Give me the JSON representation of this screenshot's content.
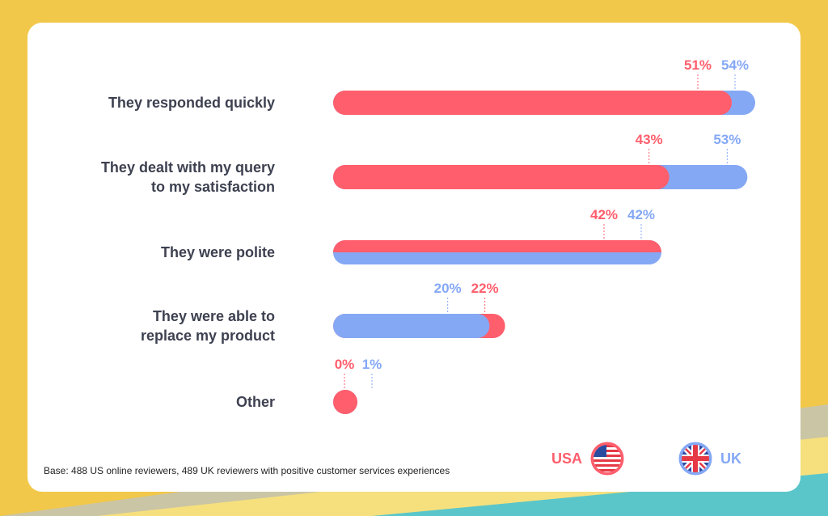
{
  "colors": {
    "usa": "#ff5e6c",
    "uk": "#85a8f5",
    "label": "#3d4150",
    "background": "#f2c84b",
    "card": "#ffffff"
  },
  "chart_data": {
    "type": "bar",
    "orientation": "horizontal",
    "categories": [
      [
        "They responded quickly"
      ],
      [
        "They dealt with my query",
        "to my satisfaction"
      ],
      [
        "They were polite"
      ],
      [
        "They were able to",
        "replace my product"
      ],
      [
        "Other"
      ]
    ],
    "series": [
      {
        "name": "USA",
        "color": "#ff5e6c",
        "values": [
          51,
          43,
          42,
          22,
          0
        ],
        "labels": [
          "51%",
          "43%",
          "42%",
          "22%",
          "0%"
        ]
      },
      {
        "name": "UK",
        "color": "#85a8f5",
        "values": [
          54,
          53,
          42,
          20,
          1
        ],
        "labels": [
          "54%",
          "53%",
          "42%",
          "20%",
          "1%"
        ]
      }
    ],
    "xlim": [
      0,
      54
    ],
    "grid": false,
    "legend_position": "bottom-right"
  },
  "legend": {
    "usa_label": "USA",
    "uk_label": "UK",
    "usa_icon": "us-flag-icon",
    "uk_icon": "uk-flag-icon"
  },
  "footnote": "Base: 488 US online reviewers, 489 UK reviewers with positive customer services experiences"
}
